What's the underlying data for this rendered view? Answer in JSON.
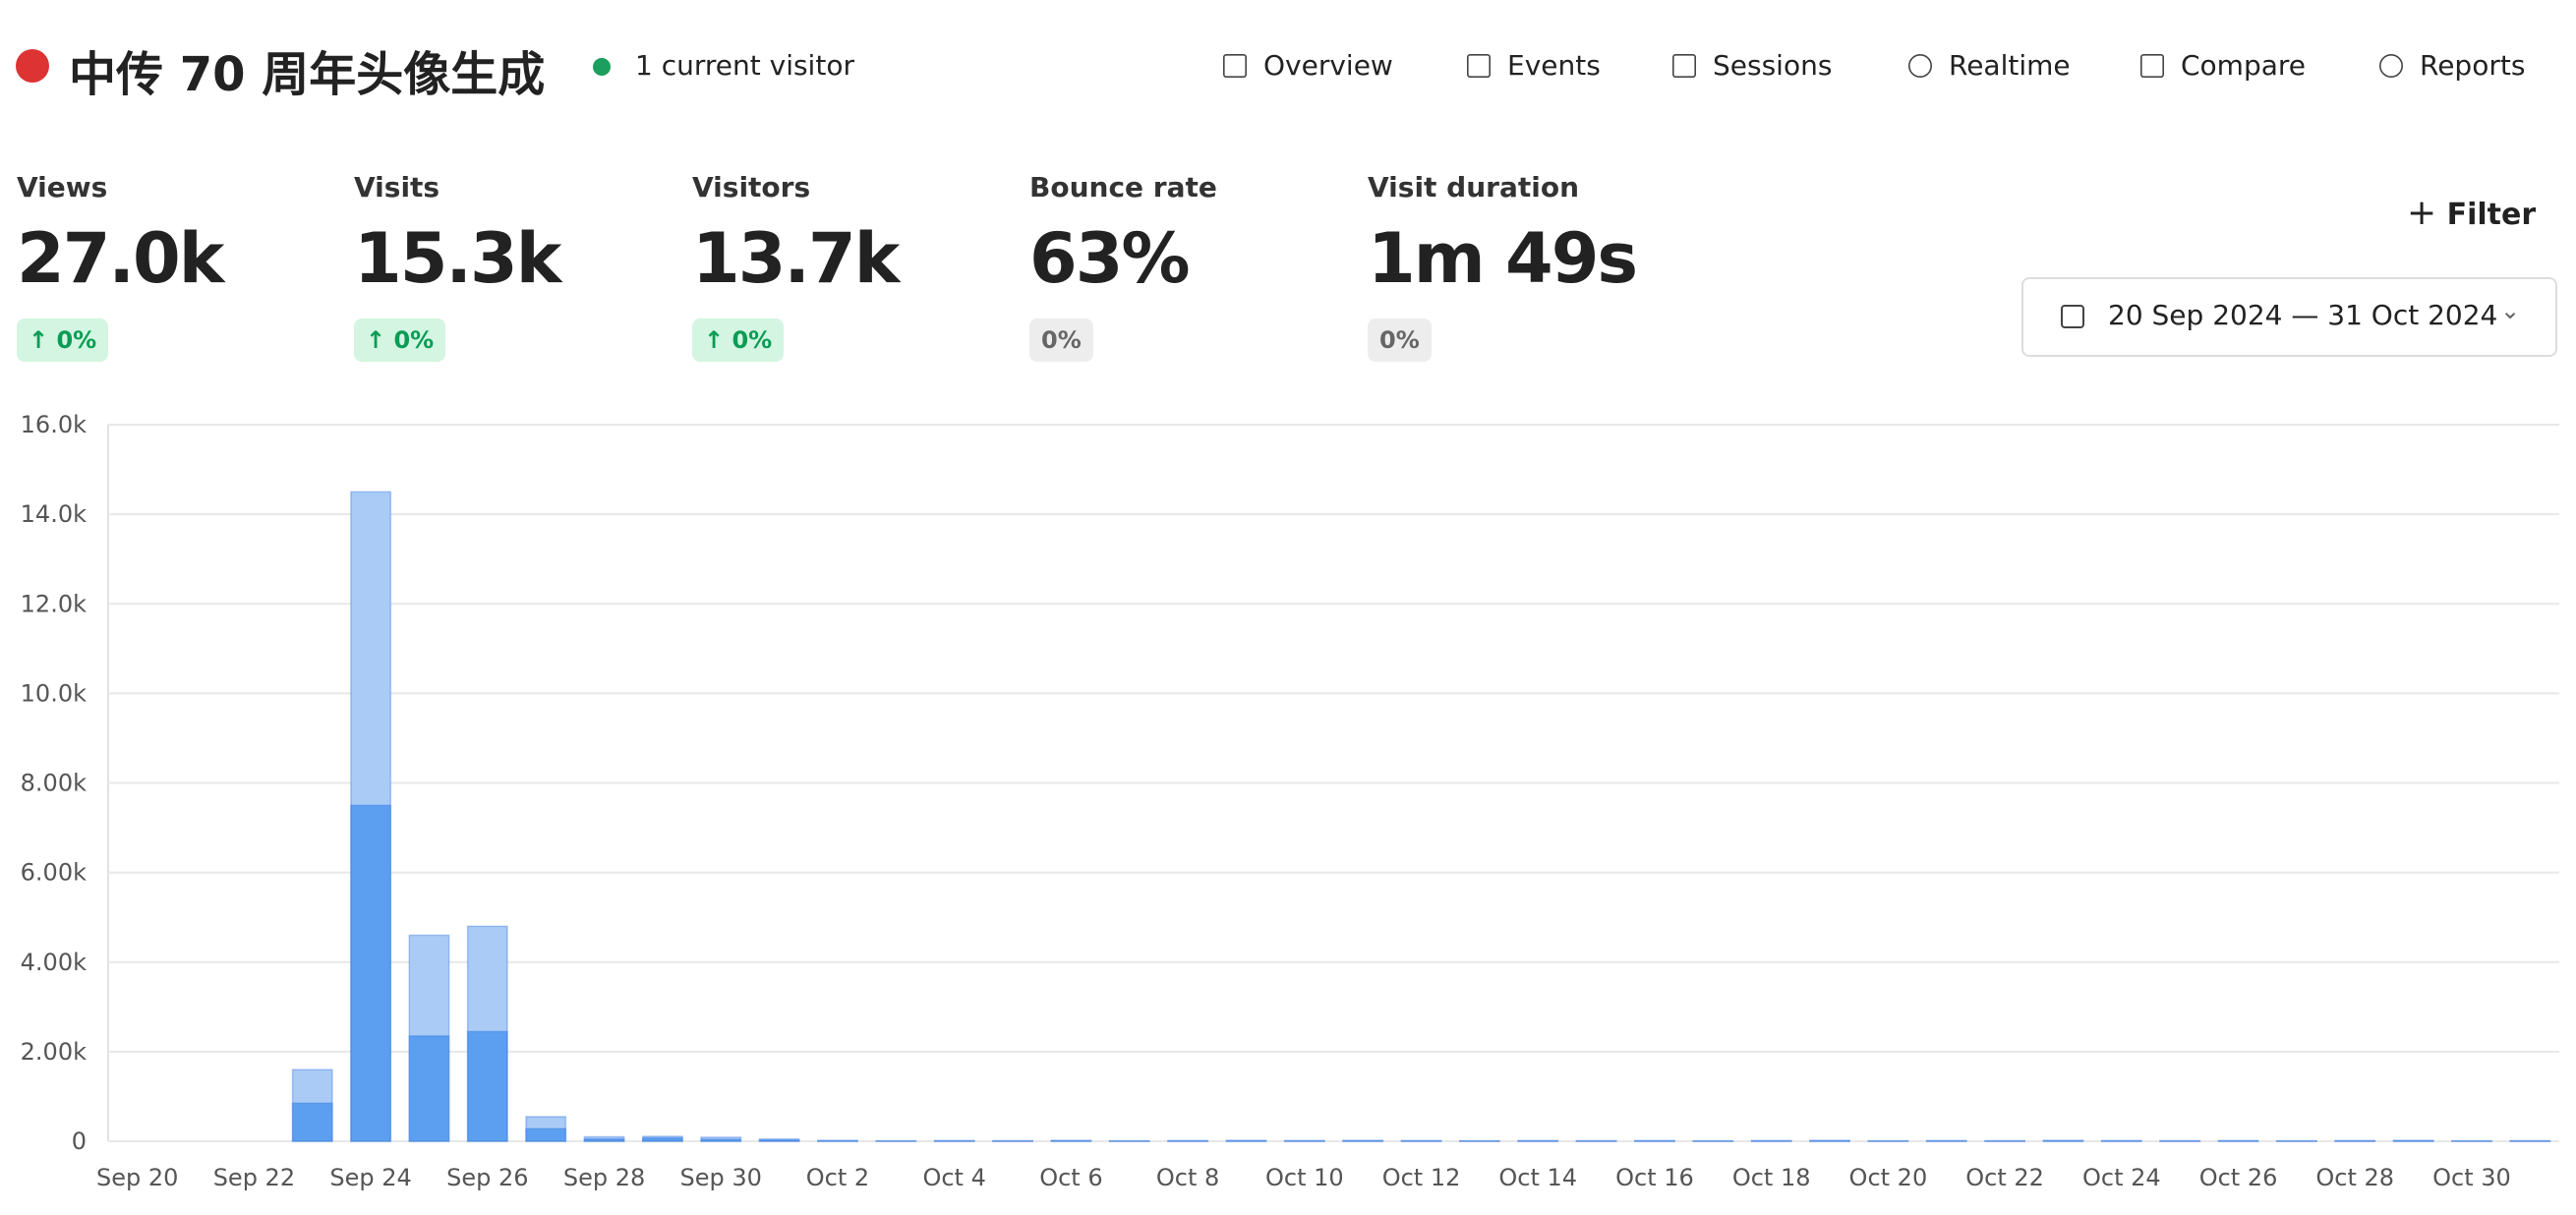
{
  "header": {
    "title": "中传 70 周年头像生成",
    "visitors": "1 current visitor",
    "nav": [
      "Overview",
      "Events",
      "Sessions",
      "Realtime",
      "Compare",
      "Reports"
    ]
  },
  "metrics": [
    {
      "label": "Views",
      "value": "27.0k",
      "change": "0%",
      "up": true
    },
    {
      "label": "Visits",
      "value": "15.3k",
      "change": "0%",
      "up": true
    },
    {
      "label": "Visitors",
      "value": "13.7k",
      "change": "0%",
      "up": true
    },
    {
      "label": "Bounce rate",
      "value": "63%",
      "change": "0%"
    },
    {
      "label": "Visit duration",
      "value": "1m 49s",
      "change": "0%"
    }
  ],
  "filter": "Filter",
  "date_range": "20 Sep 2024 — 31 Oct 2024",
  "chart_data": {
    "type": "bar",
    "categories": [
      "Sep 20",
      null,
      "Sep 22",
      null,
      "Sep 24",
      null,
      "Sep 26",
      null,
      "Sep 28",
      null,
      "Sep 30",
      null,
      "Oct 2",
      null,
      "Oct 4",
      null,
      "Oct 6",
      null,
      "Oct 8",
      null,
      "Oct 10",
      null,
      "Oct 12",
      null,
      "Oct 14",
      null,
      "Oct 16",
      null,
      "Oct 18",
      null,
      "Oct 20",
      null,
      "Oct 22",
      null,
      "Oct 24",
      null,
      "Oct 26",
      null,
      "Oct 28",
      null,
      "Oct 30",
      null
    ],
    "series": [
      {
        "color": "#a9cbf6",
        "values": [
          0,
          0,
          0,
          1600,
          14500,
          4600,
          4800,
          550,
          100,
          110,
          90,
          50,
          20,
          10,
          15,
          12,
          20,
          10,
          15,
          20,
          15,
          20,
          15,
          10,
          15,
          12,
          15,
          10,
          15,
          20,
          10,
          15,
          12,
          20,
          15,
          12,
          15,
          10,
          15,
          20,
          10,
          12
        ]
      },
      {
        "color": "#5c9ff0",
        "values": [
          0,
          0,
          0,
          850,
          7500,
          2350,
          2450,
          280,
          50,
          70,
          40,
          25,
          10,
          5,
          8,
          6,
          10,
          5,
          8,
          10,
          8,
          10,
          8,
          5,
          8,
          6,
          8,
          5,
          8,
          10,
          5,
          8,
          6,
          10,
          8,
          6,
          8,
          5,
          8,
          10,
          5,
          6
        ]
      }
    ],
    "ylim": [
      0,
      16000
    ],
    "yticks": [
      0,
      {
        "value": 2000,
        "label": "2.00k"
      },
      {
        "value": 4000,
        "label": "4.00k"
      },
      {
        "value": 6000,
        "label": "6.00k"
      },
      {
        "value": 8000,
        "label": "8.00k"
      },
      {
        "value": 10000,
        "label": "10.0k"
      },
      {
        "value": 12000,
        "label": "12.0k"
      },
      {
        "value": 14000,
        "label": "14.0k"
      },
      {
        "value": 16000,
        "label": "16.0k"
      }
    ],
    "grid": true
  }
}
